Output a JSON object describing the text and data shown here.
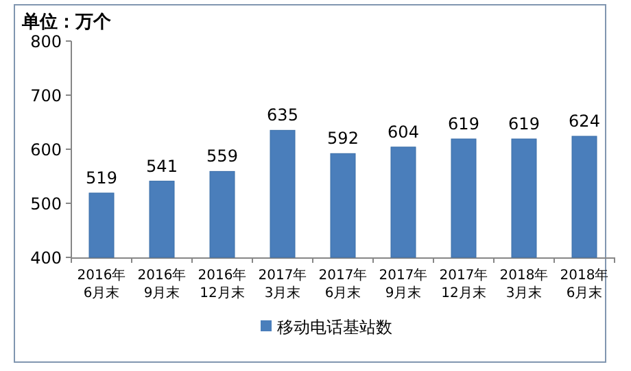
{
  "chart_data": {
    "type": "bar",
    "ylabel": "单位：万个",
    "categories": [
      "2016年6月末",
      "2016年9月末",
      "2016年12月末",
      "2017年3月末",
      "2017年6月末",
      "2017年9月末",
      "2017年12月末",
      "2018年3月末",
      "2018年6月末"
    ],
    "series": [
      {
        "name": "移动电话基站数",
        "color": "#4a7ebb",
        "values": [
          519,
          541,
          559,
          635,
          592,
          604,
          619,
          619,
          624
        ]
      }
    ],
    "ylim": [
      400,
      800
    ],
    "yticks": [
      400,
      500,
      600,
      700,
      800
    ],
    "data_labels": true,
    "legend": "bottom"
  }
}
